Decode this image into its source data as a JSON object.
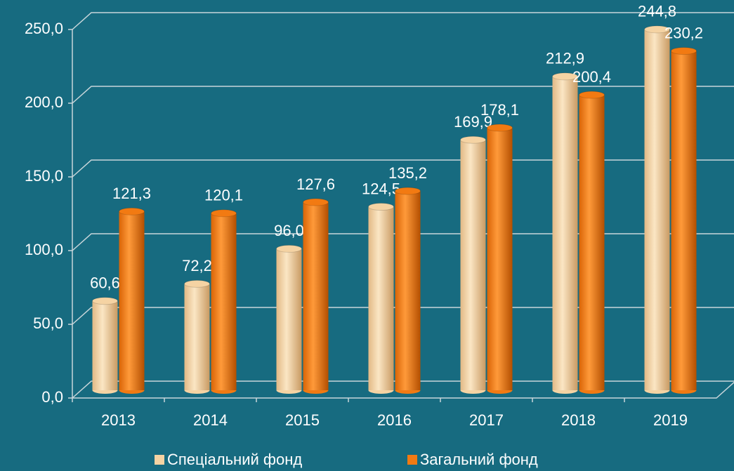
{
  "chart_data": {
    "type": "bar",
    "categories": [
      "2013",
      "2014",
      "2015",
      "2016",
      "2017",
      "2018",
      "2019"
    ],
    "series": [
      {
        "name": "Спеціальний фонд",
        "color": "#f5d3a3",
        "values": [
          60.6,
          72.2,
          96.0,
          124.5,
          169.9,
          212.9,
          244.8
        ],
        "value_labels": [
          "60,6",
          "72,2",
          "96,0",
          "124,5",
          "169,9",
          "212,9",
          "244,8"
        ]
      },
      {
        "name": "Загальний фонд",
        "color": "#f27a12",
        "values": [
          121.3,
          120.1,
          127.6,
          135.2,
          178.1,
          200.4,
          230.2
        ],
        "value_labels": [
          "121,3",
          "120,1",
          "127,6",
          "135,2",
          "178,1",
          "200,4",
          "230,2"
        ]
      }
    ],
    "ylim": [
      0,
      250
    ],
    "yticks": [
      {
        "value": 0,
        "label": "0,0"
      },
      {
        "value": 50,
        "label": "50,0"
      },
      {
        "value": 100,
        "label": "100,0"
      },
      {
        "value": 150,
        "label": "150,0"
      },
      {
        "value": 200,
        "label": "200,0"
      },
      {
        "value": 250,
        "label": "250,0"
      }
    ],
    "grid": true,
    "legend": "bottom"
  }
}
